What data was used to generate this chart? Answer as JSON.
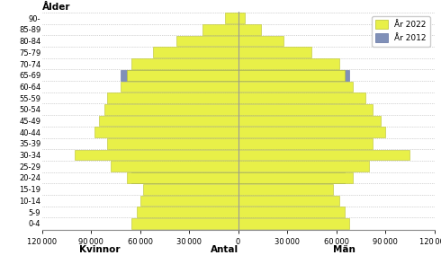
{
  "age_groups": [
    "0-4",
    "5-9",
    "10-14",
    "15-19",
    "20-24",
    "25-29",
    "30-34",
    "35-39",
    "40-44",
    "45-49",
    "50-54",
    "55-59",
    "60-64",
    "65-69",
    "70-74",
    "75-79",
    "80-84",
    "85-89",
    "90-"
  ],
  "women_2022": [
    65000,
    62000,
    60000,
    58000,
    68000,
    78000,
    100000,
    80000,
    88000,
    85000,
    82000,
    80000,
    72000,
    68000,
    65000,
    52000,
    38000,
    22000,
    8000
  ],
  "men_2022": [
    68000,
    65000,
    62000,
    58000,
    70000,
    80000,
    105000,
    82000,
    90000,
    87000,
    82000,
    78000,
    70000,
    65000,
    62000,
    45000,
    28000,
    14000,
    4000
  ],
  "women_2012": [
    0,
    0,
    0,
    0,
    65000,
    0,
    0,
    0,
    0,
    0,
    0,
    0,
    0,
    72000,
    0,
    0,
    0,
    0,
    0
  ],
  "men_2012": [
    0,
    0,
    0,
    0,
    65000,
    0,
    0,
    0,
    0,
    0,
    0,
    0,
    0,
    68000,
    0,
    0,
    0,
    0,
    0
  ],
  "color_2022": "#e8f048",
  "color_2012": "#8090b8",
  "color_edge_2022": "#b8c030",
  "color_edge_2012": "#6070a0",
  "xlim": 120000,
  "xlabel_left": "Kvinnor",
  "xlabel_center": "Antal",
  "xlabel_right": "Män",
  "ylabel": "Ålder",
  "legend_2022": "År 2022",
  "legend_2012": "År 2012",
  "background_color": "#ffffff"
}
